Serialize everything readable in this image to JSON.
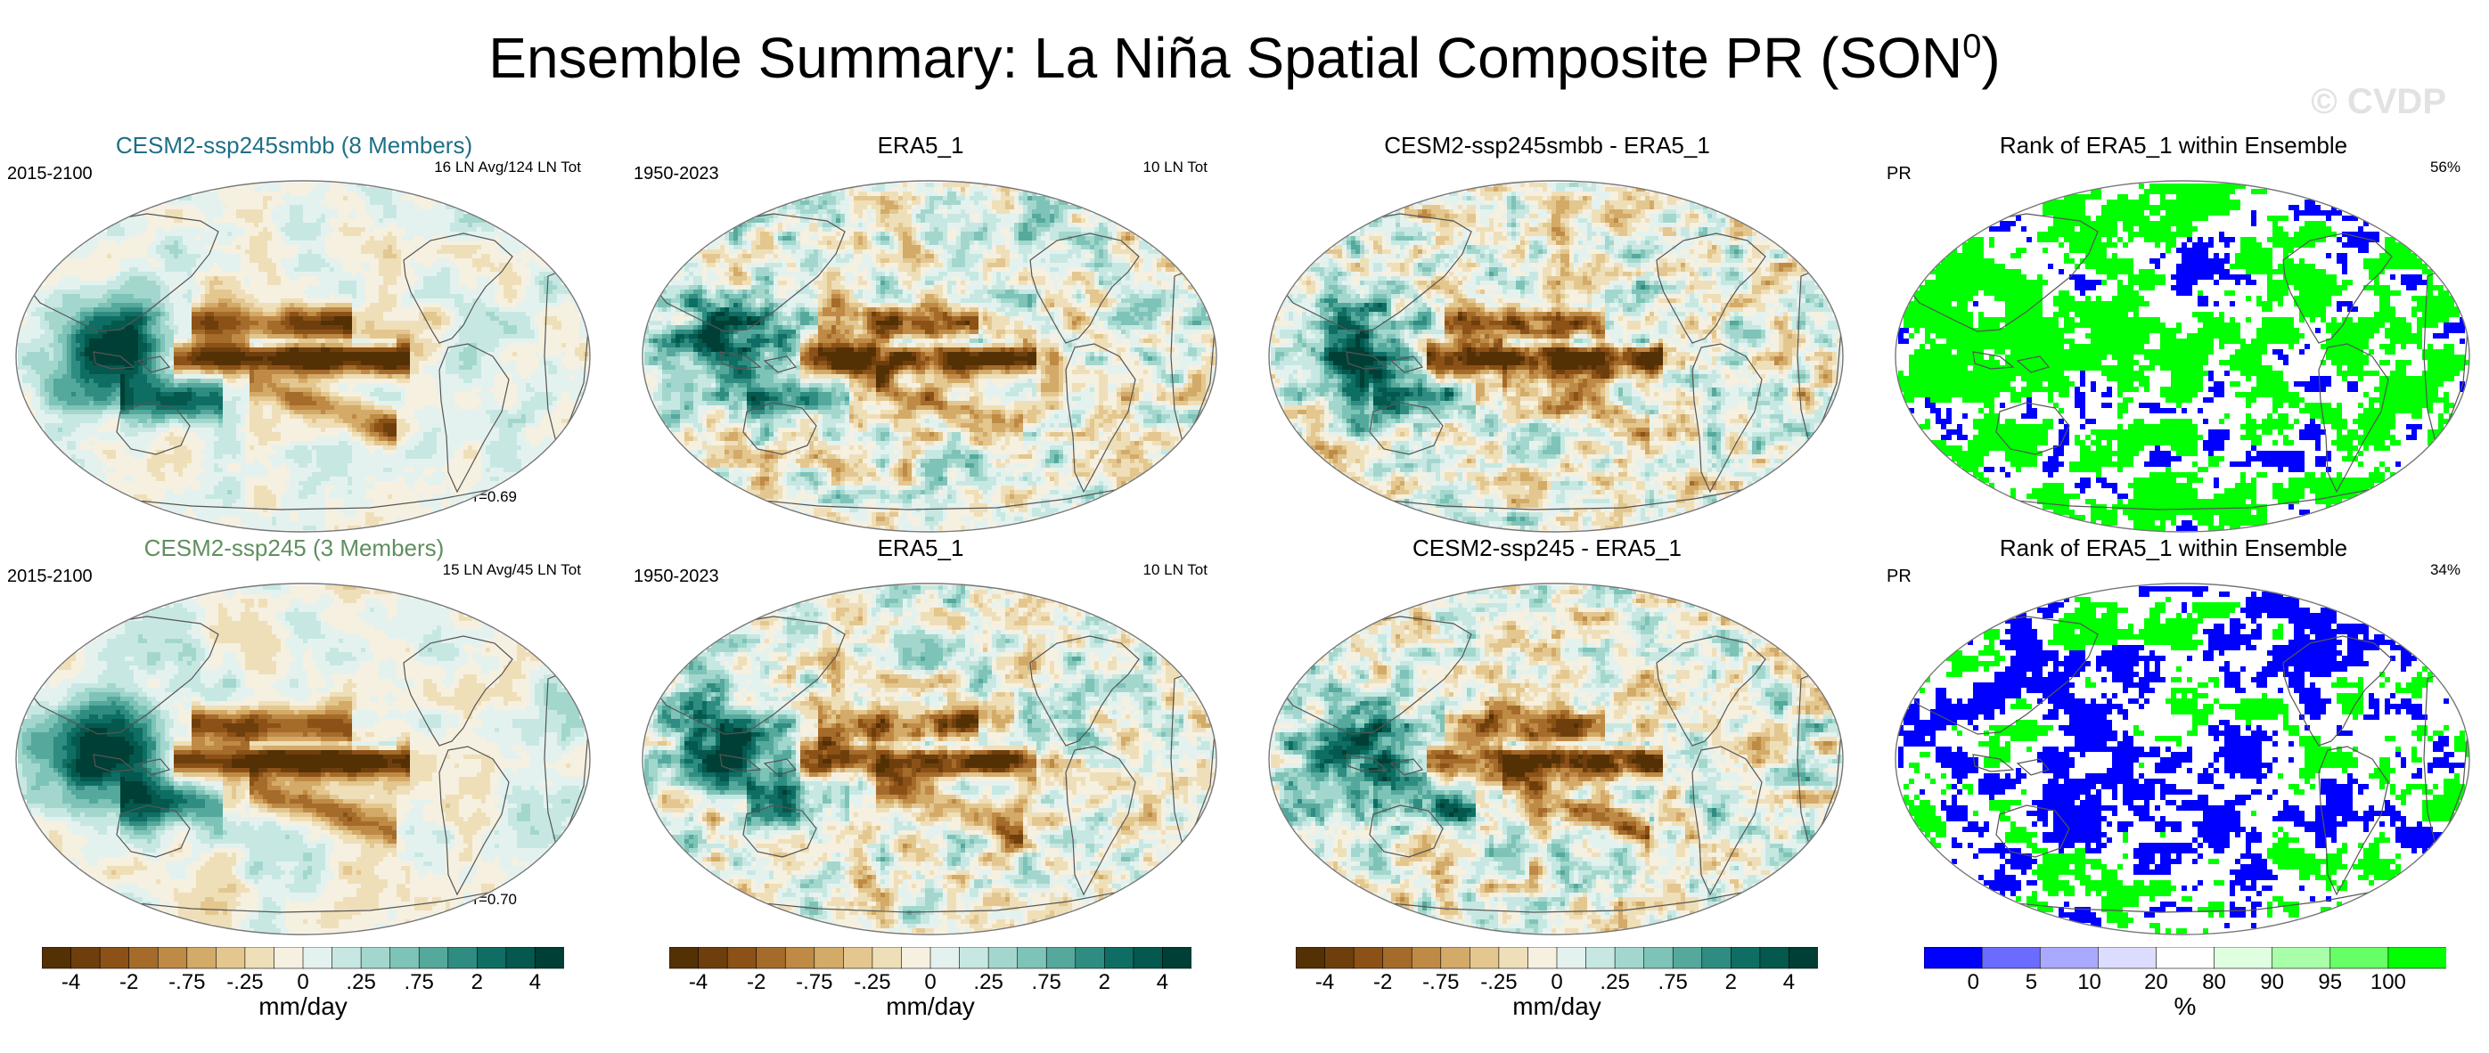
{
  "title": "Ensemble Summary: La Niña Spatial Composite PR (SON",
  "title_sup": "0",
  "title_close": ")",
  "watermark": "© CVDP",
  "colors": {
    "brown_dark": "#5a3410",
    "teal_dark": "#00453c",
    "rank_blue": "#0000ff",
    "rank_green": "#00ff00",
    "title_teal": "#1f6f86",
    "title_green": "#5f8f5f"
  },
  "chart_data": [
    {
      "type": "heatmap",
      "panel": "row1-col1",
      "title": "CESM2-ssp245smbb (8 Members)",
      "title_color": "#1f6f86",
      "top_left": "2015-2100",
      "top_right": "16 LN Avg/124 LN Tot",
      "bottom_right": "r=0.69",
      "pattern": "model"
    },
    {
      "type": "heatmap",
      "panel": "row1-col2",
      "title": "ERA5_1",
      "top_left": "1950-2023",
      "top_right": "10 LN Tot",
      "pattern": "obs"
    },
    {
      "type": "heatmap",
      "panel": "row1-col3",
      "title": "CESM2-ssp245smbb - ERA5_1",
      "pattern": "diff"
    },
    {
      "type": "heatmap",
      "panel": "row1-col4",
      "title": "Rank of ERA5_1 within Ensemble",
      "top_left": "PR",
      "top_right": "56%",
      "pattern": "rank"
    },
    {
      "type": "heatmap",
      "panel": "row2-col1",
      "title": "CESM2-ssp245 (3 Members)",
      "title_color": "#5f8f5f",
      "top_left": "2015-2100",
      "top_right": "15 LN Avg/45 LN Tot",
      "bottom_right": "r=0.70",
      "pattern": "model"
    },
    {
      "type": "heatmap",
      "panel": "row2-col2",
      "title": "ERA5_1",
      "top_left": "1950-2023",
      "top_right": "10 LN Tot",
      "pattern": "obs"
    },
    {
      "type": "heatmap",
      "panel": "row2-col3",
      "title": "CESM2-ssp245 - ERA5_1",
      "pattern": "diff"
    },
    {
      "type": "heatmap",
      "panel": "row2-col4",
      "title": "Rank of ERA5_1 within Ensemble",
      "top_left": "PR",
      "top_right": "34%",
      "pattern": "rank"
    }
  ],
  "colorbar_pr": {
    "unit": "mm/day",
    "tick_labels": [
      "-4",
      "-2",
      "-.75",
      "-.25",
      "0",
      ".25",
      ".75",
      "2",
      "4"
    ],
    "colors": [
      "#543005",
      "#6e3f0d",
      "#8c5116",
      "#a56b2a",
      "#bf8a45",
      "#d3aa68",
      "#e3c78f",
      "#efdfb8",
      "#f6f0e0",
      "#e4f2ef",
      "#c7e8e2",
      "#a3d7cd",
      "#7ec3b7",
      "#55a89c",
      "#2f8c80",
      "#0f6e63",
      "#04584d",
      "#003f35"
    ]
  },
  "colorbar_rank": {
    "unit": "%",
    "tick_labels": [
      "0",
      "5",
      "10",
      "20",
      "80",
      "90",
      "95",
      "100"
    ],
    "colors": [
      "#0000ff",
      "#6b6bff",
      "#a9a9ff",
      "#dcdcff",
      "#ffffff",
      "#e0ffe0",
      "#a8ffa8",
      "#66ff66",
      "#00ff00"
    ]
  }
}
